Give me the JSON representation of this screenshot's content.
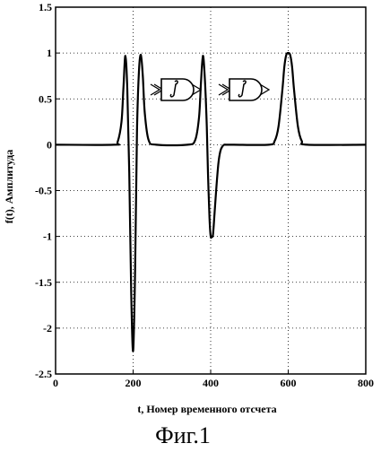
{
  "chart_data": {
    "type": "line",
    "title": "",
    "xlabel": "t, Номер временного отсчета",
    "ylabel": "f(t), Амплитуда",
    "xlim": [
      0,
      800
    ],
    "ylim": [
      -2.5,
      1.5
    ],
    "xticks": [
      0,
      200,
      400,
      600,
      800
    ],
    "xtick_labels": [
      "0",
      "200",
      "400",
      "600",
      "800"
    ],
    "yticks": [
      1.5,
      1,
      0.5,
      0,
      -0.5,
      -1,
      -1.5,
      -2,
      -2.5
    ],
    "ytick_labels": [
      "1.5",
      "1",
      "0.5",
      "0",
      "-0.5",
      "-1",
      "-1.5",
      "-2",
      "-2.5"
    ],
    "grid": true,
    "series": [
      {
        "color": "#000000",
        "x": [
          0,
          150,
          160,
          170,
          175,
          180,
          185,
          190,
          195,
          200,
          205,
          210,
          215,
          220,
          225,
          230,
          240,
          260,
          340,
          360,
          370,
          375,
          380,
          385,
          390,
          393,
          397,
          400,
          403,
          406,
          410,
          415,
          420,
          425,
          430,
          435,
          440,
          460,
          550,
          565,
          575,
          585,
          590,
          595,
          600,
          605,
          610,
          615,
          625,
          635,
          650,
          800
        ],
        "y": [
          0,
          0,
          0.03,
          0.25,
          0.62,
          0.97,
          0.6,
          -0.3,
          -1.6,
          -2.25,
          -1.4,
          0.15,
          0.8,
          0.98,
          0.75,
          0.35,
          0.05,
          0,
          0,
          0.05,
          0.3,
          0.68,
          0.97,
          0.72,
          0.2,
          -0.3,
          -0.8,
          -1.0,
          -1.0,
          -0.98,
          -0.75,
          -0.45,
          -0.2,
          -0.07,
          -0.02,
          0,
          0,
          0,
          0,
          0.04,
          0.2,
          0.6,
          0.85,
          0.98,
          1.0,
          0.98,
          0.85,
          0.6,
          0.2,
          0.04,
          0,
          0
        ]
      }
    ]
  },
  "figure": {
    "caption": "Фиг.1"
  },
  "insets": {
    "icons": [
      "integrator-block-icon",
      "integrator-block-icon"
    ]
  }
}
